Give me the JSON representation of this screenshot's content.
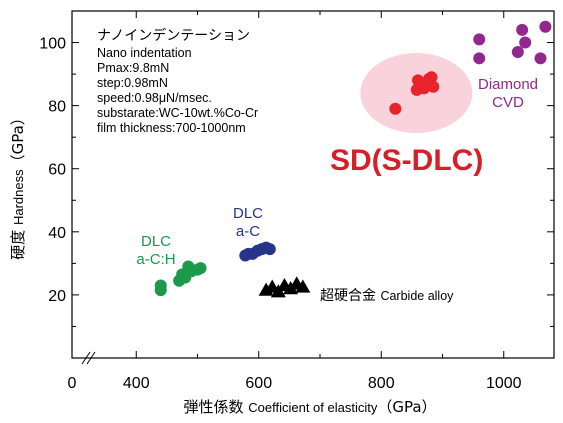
{
  "chart_data": {
    "type": "scatter",
    "title": "",
    "xlabel": "弾性係数 Coefficient of elasticity（GPa）",
    "xlabel_parts": {
      "jp": "弾性係数",
      "en": "Coefficient of elasticity",
      "unit": "（GPa）"
    },
    "ylabel": "硬度 Hardness（GPa）",
    "ylabel_parts": {
      "jp": "硬度",
      "en": "Hardness",
      "unit": "（GPa）"
    },
    "xlim": [
      0,
      1080
    ],
    "ylim": [
      0,
      110
    ],
    "x_axis_break": true,
    "x_ticks": [
      {
        "value": 0,
        "label": "0"
      },
      {
        "value": 400,
        "label": "400"
      },
      {
        "value": 600,
        "label": "600"
      },
      {
        "value": 800,
        "label": "800"
      },
      {
        "value": 1000,
        "label": "1000"
      }
    ],
    "y_ticks": [
      20,
      40,
      60,
      80,
      100
    ],
    "grid": false,
    "conditions": {
      "title_jp": "ナノインデンテーション",
      "lines": [
        "Nano indentation",
        "Pmax:9.8mN",
        "step:0.98mN",
        "speed:0.98μN/msec.",
        "substarate:WC-10wt.%Co-Cr",
        "film thickness:700-1000nm"
      ]
    },
    "series": [
      {
        "label_lines": [
          "DLC",
          "a-C:H"
        ],
        "color": "#1a9a4a",
        "marker": "circle",
        "points": [
          [
            440,
            21.5
          ],
          [
            440,
            23
          ],
          [
            470,
            24.5
          ],
          [
            475,
            26.5
          ],
          [
            480,
            25.5
          ],
          [
            485,
            29
          ],
          [
            490,
            27.5
          ],
          [
            500,
            28
          ],
          [
            505,
            28.5
          ]
        ]
      },
      {
        "label_lines": [
          "DLC",
          "a-C"
        ],
        "color": "#27348b",
        "marker": "circle",
        "points": [
          [
            578,
            32.5
          ],
          [
            583,
            33
          ],
          [
            590,
            33
          ],
          [
            598,
            34
          ],
          [
            605,
            34.5
          ],
          [
            612,
            35
          ],
          [
            618,
            34.5
          ]
        ]
      },
      {
        "label_lines": [
          "超硬合金",
          "Carbide alloy"
        ],
        "color": "#000000",
        "marker": "triangle",
        "points": [
          [
            612,
            21.5
          ],
          [
            622,
            22.5
          ],
          [
            632,
            21
          ],
          [
            642,
            23
          ],
          [
            652,
            22
          ],
          [
            662,
            23.5
          ],
          [
            672,
            22.5
          ]
        ]
      },
      {
        "label_lines": [
          "Diamond",
          "CVD"
        ],
        "color": "#92278f",
        "marker": "circle",
        "points": [
          [
            960,
            101
          ],
          [
            960,
            95
          ],
          [
            1023,
            97
          ],
          [
            1030,
            104
          ],
          [
            1035,
            100
          ],
          [
            1060,
            95
          ],
          [
            1068,
            105
          ]
        ]
      },
      {
        "label_lines": [
          "SD(S-DLC)"
        ],
        "color": "#e8232a",
        "marker": "circle",
        "highlight": "#f9d2dc",
        "points": [
          [
            823,
            79
          ],
          [
            858,
            85
          ],
          [
            860,
            88
          ],
          [
            870,
            85.5
          ],
          [
            878,
            88.5
          ],
          [
            882,
            89
          ],
          [
            885,
            86
          ]
        ]
      }
    ]
  }
}
